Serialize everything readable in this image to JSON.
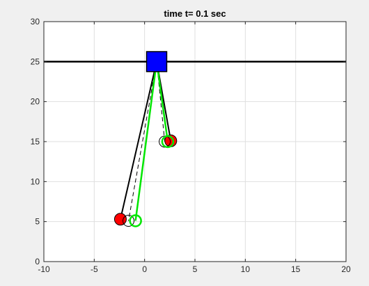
{
  "chart_data": {
    "type": "line",
    "title": "time t= 0.1 sec",
    "xlabel": "",
    "ylabel": "",
    "xlim": [
      -10,
      20
    ],
    "ylim": [
      0,
      30
    ],
    "xticks": [
      -10,
      -5,
      0,
      5,
      10,
      15,
      20
    ],
    "yticks": [
      0,
      5,
      10,
      15,
      20,
      25,
      30
    ],
    "grid": true,
    "track": {
      "y": 25,
      "x_range": [
        -10,
        20
      ],
      "color": "#000000"
    },
    "cart": {
      "x": 1.2,
      "y": 25,
      "width": 2.0,
      "height": 2.5,
      "color": "#0000ff"
    },
    "pivot": {
      "x": 1.2,
      "y": 25
    },
    "series": [
      {
        "name": "pendulum-a-actual",
        "style": "solid",
        "color": "#000000",
        "points": [
          {
            "x": 1.2,
            "y": 25
          },
          {
            "x": 2.6,
            "y": 15.1
          }
        ],
        "bob": {
          "x": 2.6,
          "y": 15.1,
          "fill": "#ff0000",
          "edge": "#000000"
        }
      },
      {
        "name": "pendulum-b-actual",
        "style": "solid",
        "color": "#000000",
        "points": [
          {
            "x": 1.2,
            "y": 25
          },
          {
            "x": -2.4,
            "y": 5.3
          }
        ],
        "bob": {
          "x": -2.4,
          "y": 5.3,
          "fill": "#ff0000",
          "edge": "#000000"
        }
      },
      {
        "name": "pendulum-a-reference",
        "style": "dashed",
        "color": "#000000",
        "points": [
          {
            "x": 1.2,
            "y": 25
          },
          {
            "x": 2.0,
            "y": 15.0
          }
        ],
        "bob": {
          "x": 2.0,
          "y": 15.0,
          "fill": "none",
          "edge": "#000000"
        }
      },
      {
        "name": "pendulum-b-reference",
        "style": "dashed",
        "color": "#000000",
        "points": [
          {
            "x": 1.2,
            "y": 25
          },
          {
            "x": -1.6,
            "y": 5.1
          }
        ],
        "bob": {
          "x": -1.6,
          "y": 5.1,
          "fill": "none",
          "edge": "#000000"
        }
      },
      {
        "name": "pendulum-a-estimate",
        "style": "solid",
        "color": "#00e600",
        "points": [
          {
            "x": 1.2,
            "y": 25
          },
          {
            "x": 2.3,
            "y": 15.0
          }
        ],
        "bob": {
          "x": 2.3,
          "y": 15.0,
          "fill": "none",
          "edge": "#00e600"
        }
      },
      {
        "name": "pendulum-b-estimate",
        "style": "solid",
        "color": "#00e600",
        "points": [
          {
            "x": 1.2,
            "y": 25
          },
          {
            "x": -0.9,
            "y": 5.1
          }
        ],
        "bob": {
          "x": -0.9,
          "y": 5.1,
          "fill": "none",
          "edge": "#00e600"
        }
      }
    ]
  }
}
